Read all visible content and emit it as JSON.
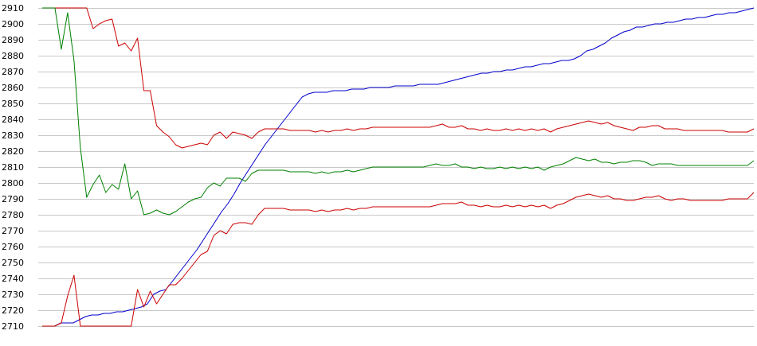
{
  "chart_data": {
    "type": "line",
    "ylim": [
      2710,
      2910
    ],
    "yticks": [
      2910,
      2900,
      2890,
      2880,
      2870,
      2860,
      2850,
      2840,
      2830,
      2820,
      2810,
      2800,
      2790,
      2780,
      2770,
      2760,
      2750,
      2740,
      2730,
      2720,
      2710
    ],
    "grid": true,
    "series": [
      {
        "color": "#0000cc",
        "values": [
          2710,
          2710,
          2710,
          2712,
          2712,
          2712,
          2714,
          2716,
          2717,
          2717,
          2718,
          2718,
          2719,
          2719,
          2720,
          2721,
          2722,
          2724,
          2730,
          2732,
          2733,
          2738,
          2743,
          2748,
          2753,
          2758,
          2764,
          2770,
          2776,
          2782,
          2787,
          2793,
          2800,
          2806,
          2812,
          2818,
          2824,
          2829,
          2834,
          2839,
          2844,
          2849,
          2854,
          2856,
          2857,
          2857,
          2857,
          2858,
          2858,
          2858,
          2859,
          2859,
          2859,
          2860,
          2860,
          2860,
          2860,
          2861,
          2861,
          2861,
          2861,
          2862,
          2862,
          2862,
          2862,
          2863,
          2864,
          2865,
          2866,
          2867,
          2868,
          2869,
          2869,
          2870,
          2870,
          2871,
          2871,
          2872,
          2873,
          2873,
          2874,
          2875,
          2875,
          2876,
          2877,
          2877,
          2878,
          2880,
          2883,
          2884,
          2886,
          2888,
          2891,
          2893,
          2895,
          2896,
          2898,
          2898,
          2899,
          2900,
          2900,
          2901,
          2901,
          2902,
          2903,
          2903,
          2904,
          2904,
          2905,
          2906,
          2906,
          2907,
          2907,
          2908,
          2909,
          2910
        ]
      },
      {
        "color": "#cc0000",
        "values": [
          2910,
          2910,
          2910,
          2910,
          2910,
          2910,
          2910,
          2910,
          2897,
          2900,
          2902,
          2903,
          2886,
          2888,
          2883,
          2891,
          2858,
          2858,
          2836,
          2832,
          2829,
          2824,
          2822,
          2823,
          2824,
          2825,
          2824,
          2830,
          2832,
          2828,
          2832,
          2831,
          2830,
          2828,
          2832,
          2834,
          2834,
          2834,
          2834,
          2833,
          2833,
          2833,
          2833,
          2832,
          2833,
          2832,
          2833,
          2833,
          2834,
          2833,
          2834,
          2834,
          2835,
          2835,
          2835,
          2835,
          2835,
          2835,
          2835,
          2835,
          2835,
          2835,
          2836,
          2837,
          2835,
          2835,
          2836,
          2834,
          2834,
          2833,
          2834,
          2833,
          2833,
          2834,
          2833,
          2834,
          2833,
          2834,
          2833,
          2834,
          2832,
          2834,
          2835,
          2836,
          2837,
          2838,
          2839,
          2838,
          2837,
          2838,
          2836,
          2835,
          2834,
          2833,
          2835,
          2835,
          2836,
          2836,
          2834,
          2834,
          2834,
          2833,
          2833,
          2833,
          2833,
          2833,
          2833,
          2833,
          2832,
          2832,
          2832,
          2832,
          2834
        ]
      },
      {
        "color": "#008000",
        "values": [
          2910,
          2910,
          2910,
          2884,
          2907,
          2877,
          2822,
          2791,
          2799,
          2805,
          2794,
          2799,
          2796,
          2812,
          2790,
          2795,
          2780,
          2781,
          2783,
          2781,
          2780,
          2782,
          2785,
          2788,
          2790,
          2791,
          2797,
          2800,
          2798,
          2803,
          2803,
          2803,
          2801,
          2806,
          2808,
          2808,
          2808,
          2808,
          2808,
          2807,
          2807,
          2807,
          2807,
          2806,
          2807,
          2806,
          2807,
          2807,
          2808,
          2807,
          2808,
          2809,
          2810,
          2810,
          2810,
          2810,
          2810,
          2810,
          2810,
          2810,
          2810,
          2811,
          2812,
          2811,
          2811,
          2812,
          2810,
          2810,
          2809,
          2810,
          2809,
          2809,
          2810,
          2809,
          2810,
          2809,
          2810,
          2809,
          2810,
          2808,
          2810,
          2811,
          2812,
          2814,
          2816,
          2815,
          2814,
          2815,
          2813,
          2813,
          2812,
          2813,
          2813,
          2814,
          2814,
          2813,
          2811,
          2812,
          2812,
          2812,
          2811,
          2811,
          2811,
          2811,
          2811,
          2811,
          2811,
          2811,
          2811,
          2811,
          2811,
          2811,
          2814
        ]
      },
      {
        "color": "#cc0000",
        "values": [
          2710,
          2710,
          2710,
          2712,
          2729,
          2742,
          2710,
          2710,
          2710,
          2710,
          2710,
          2710,
          2710,
          2710,
          2710,
          2733,
          2722,
          2732,
          2724,
          2730,
          2736,
          2736,
          2740,
          2745,
          2750,
          2755,
          2757,
          2767,
          2770,
          2768,
          2774,
          2775,
          2775,
          2774,
          2780,
          2784,
          2784,
          2784,
          2784,
          2783,
          2783,
          2783,
          2783,
          2782,
          2783,
          2782,
          2783,
          2783,
          2784,
          2783,
          2784,
          2784,
          2785,
          2785,
          2785,
          2785,
          2785,
          2785,
          2785,
          2785,
          2785,
          2785,
          2786,
          2787,
          2787,
          2787,
          2788,
          2786,
          2786,
          2785,
          2786,
          2785,
          2785,
          2786,
          2785,
          2786,
          2785,
          2786,
          2785,
          2786,
          2784,
          2786,
          2787,
          2789,
          2791,
          2792,
          2793,
          2792,
          2791,
          2792,
          2790,
          2790,
          2789,
          2789,
          2790,
          2791,
          2791,
          2792,
          2790,
          2789,
          2790,
          2790,
          2789,
          2789,
          2789,
          2789,
          2789,
          2789,
          2790,
          2790,
          2790,
          2790,
          2794
        ]
      }
    ]
  }
}
